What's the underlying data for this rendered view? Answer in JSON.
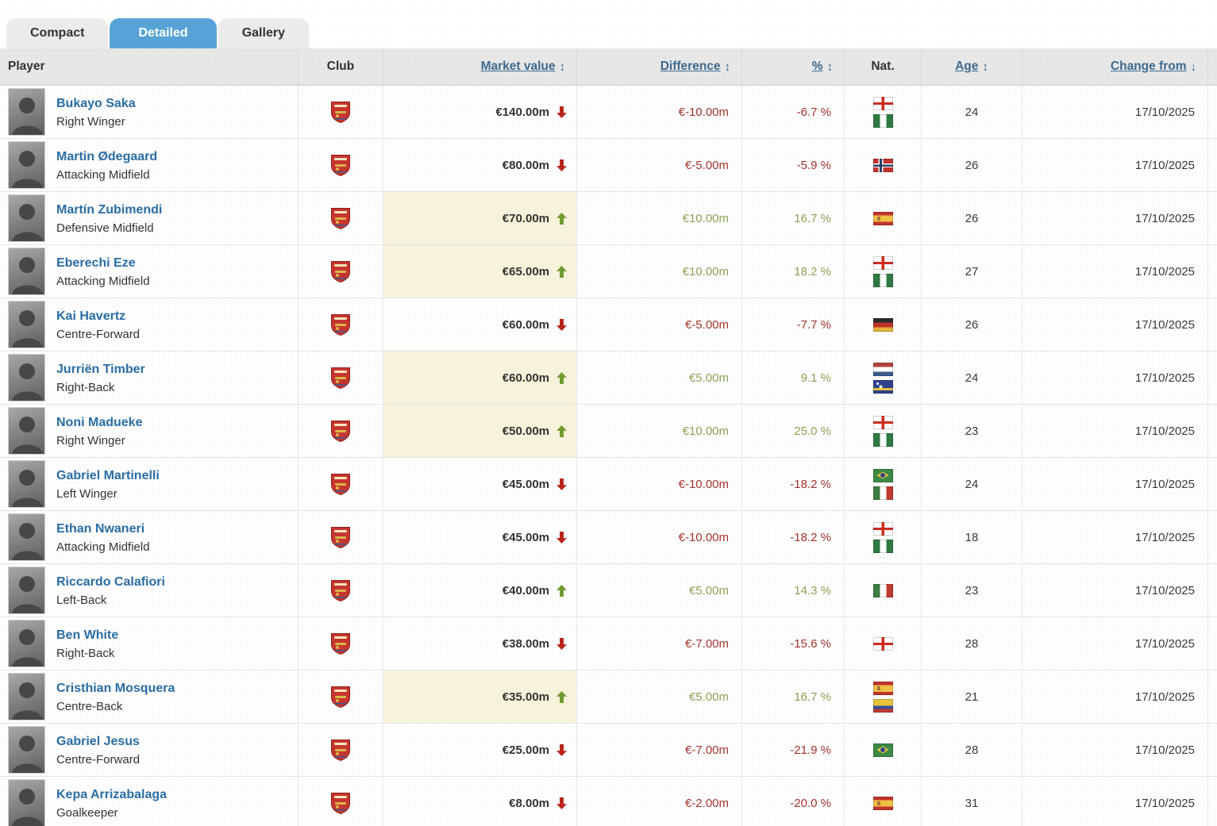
{
  "tabs": [
    {
      "label": "Compact",
      "active": false
    },
    {
      "label": "Detailed",
      "active": true
    },
    {
      "label": "Gallery",
      "active": false
    }
  ],
  "colors": {
    "active_tab": "#57a3d8",
    "highlight_cell": "#f7f2da",
    "positive": "#8aa355",
    "negative": "#a2332c",
    "arrow_up": "#6f9a2e",
    "arrow_down": "#b7241a",
    "link_blue": "#2a6da5"
  },
  "table": {
    "columns": {
      "player": "Player",
      "club": "Club",
      "market_value": "Market value",
      "difference": "Difference",
      "percent": "%",
      "nat": "Nat.",
      "age": "Age",
      "change_from": "Change from"
    },
    "sort_icons": {
      "updown": "↕",
      "down": "↓"
    },
    "club_name": "Arsenal FC",
    "rows": [
      {
        "name": "Bukayo Saka",
        "position": "Right Winger",
        "market_value": "€140.00m",
        "trend": "down",
        "highlight": false,
        "difference": "€-10.00m",
        "percent": "-6.7 %",
        "nationalities": [
          "England",
          "Nigeria"
        ],
        "age": "24",
        "change_from": "17/10/2025"
      },
      {
        "name": "Martin Ødegaard",
        "position": "Attacking Midfield",
        "market_value": "€80.00m",
        "trend": "down",
        "highlight": false,
        "difference": "€-5.00m",
        "percent": "-5.9 %",
        "nationalities": [
          "Norway"
        ],
        "age": "26",
        "change_from": "17/10/2025"
      },
      {
        "name": "Martín Zubimendi",
        "position": "Defensive Midfield",
        "market_value": "€70.00m",
        "trend": "up",
        "highlight": true,
        "difference": "€10.00m",
        "percent": "16.7 %",
        "nationalities": [
          "Spain"
        ],
        "age": "26",
        "change_from": "17/10/2025"
      },
      {
        "name": "Eberechi Eze",
        "position": "Attacking Midfield",
        "market_value": "€65.00m",
        "trend": "up",
        "highlight": true,
        "difference": "€10.00m",
        "percent": "18.2 %",
        "nationalities": [
          "England",
          "Nigeria"
        ],
        "age": "27",
        "change_from": "17/10/2025"
      },
      {
        "name": "Kai Havertz",
        "position": "Centre-Forward",
        "market_value": "€60.00m",
        "trend": "down",
        "highlight": false,
        "difference": "€-5.00m",
        "percent": "-7.7 %",
        "nationalities": [
          "Germany"
        ],
        "age": "26",
        "change_from": "17/10/2025"
      },
      {
        "name": "Jurriën Timber",
        "position": "Right-Back",
        "market_value": "€60.00m",
        "trend": "up",
        "highlight": true,
        "difference": "€5.00m",
        "percent": "9.1 %",
        "nationalities": [
          "Netherlands",
          "Curacao"
        ],
        "age": "24",
        "change_from": "17/10/2025"
      },
      {
        "name": "Noni Madueke",
        "position": "Right Winger",
        "market_value": "€50.00m",
        "trend": "up",
        "highlight": true,
        "difference": "€10.00m",
        "percent": "25.0 %",
        "nationalities": [
          "England",
          "Nigeria"
        ],
        "age": "23",
        "change_from": "17/10/2025"
      },
      {
        "name": "Gabriel Martinelli",
        "position": "Left Winger",
        "market_value": "€45.00m",
        "trend": "down",
        "highlight": false,
        "difference": "€-10.00m",
        "percent": "-18.2 %",
        "nationalities": [
          "Brazil",
          "Italy"
        ],
        "age": "24",
        "change_from": "17/10/2025"
      },
      {
        "name": "Ethan Nwaneri",
        "position": "Attacking Midfield",
        "market_value": "€45.00m",
        "trend": "down",
        "highlight": false,
        "difference": "€-10.00m",
        "percent": "-18.2 %",
        "nationalities": [
          "England",
          "Nigeria"
        ],
        "age": "18",
        "change_from": "17/10/2025"
      },
      {
        "name": "Riccardo Calafiori",
        "position": "Left-Back",
        "market_value": "€40.00m",
        "trend": "up",
        "highlight": false,
        "difference": "€5.00m",
        "percent": "14.3 %",
        "nationalities": [
          "Italy"
        ],
        "age": "23",
        "change_from": "17/10/2025"
      },
      {
        "name": "Ben White",
        "position": "Right-Back",
        "market_value": "€38.00m",
        "trend": "down",
        "highlight": false,
        "difference": "€-7.00m",
        "percent": "-15.6 %",
        "nationalities": [
          "England"
        ],
        "age": "28",
        "change_from": "17/10/2025"
      },
      {
        "name": "Cristhian Mosquera",
        "position": "Centre-Back",
        "market_value": "€35.00m",
        "trend": "up",
        "highlight": true,
        "difference": "€5.00m",
        "percent": "16.7 %",
        "nationalities": [
          "Spain",
          "Colombia"
        ],
        "age": "21",
        "change_from": "17/10/2025"
      },
      {
        "name": "Gabriel Jesus",
        "position": "Centre-Forward",
        "market_value": "€25.00m",
        "trend": "down",
        "highlight": false,
        "difference": "€-7.00m",
        "percent": "-21.9 %",
        "nationalities": [
          "Brazil"
        ],
        "age": "28",
        "change_from": "17/10/2025"
      },
      {
        "name": "Kepa Arrizabalaga",
        "position": "Goalkeeper",
        "market_value": "€8.00m",
        "trend": "down",
        "highlight": false,
        "difference": "€-2.00m",
        "percent": "-20.0 %",
        "nationalities": [
          "Spain"
        ],
        "age": "31",
        "change_from": "17/10/2025"
      }
    ]
  }
}
